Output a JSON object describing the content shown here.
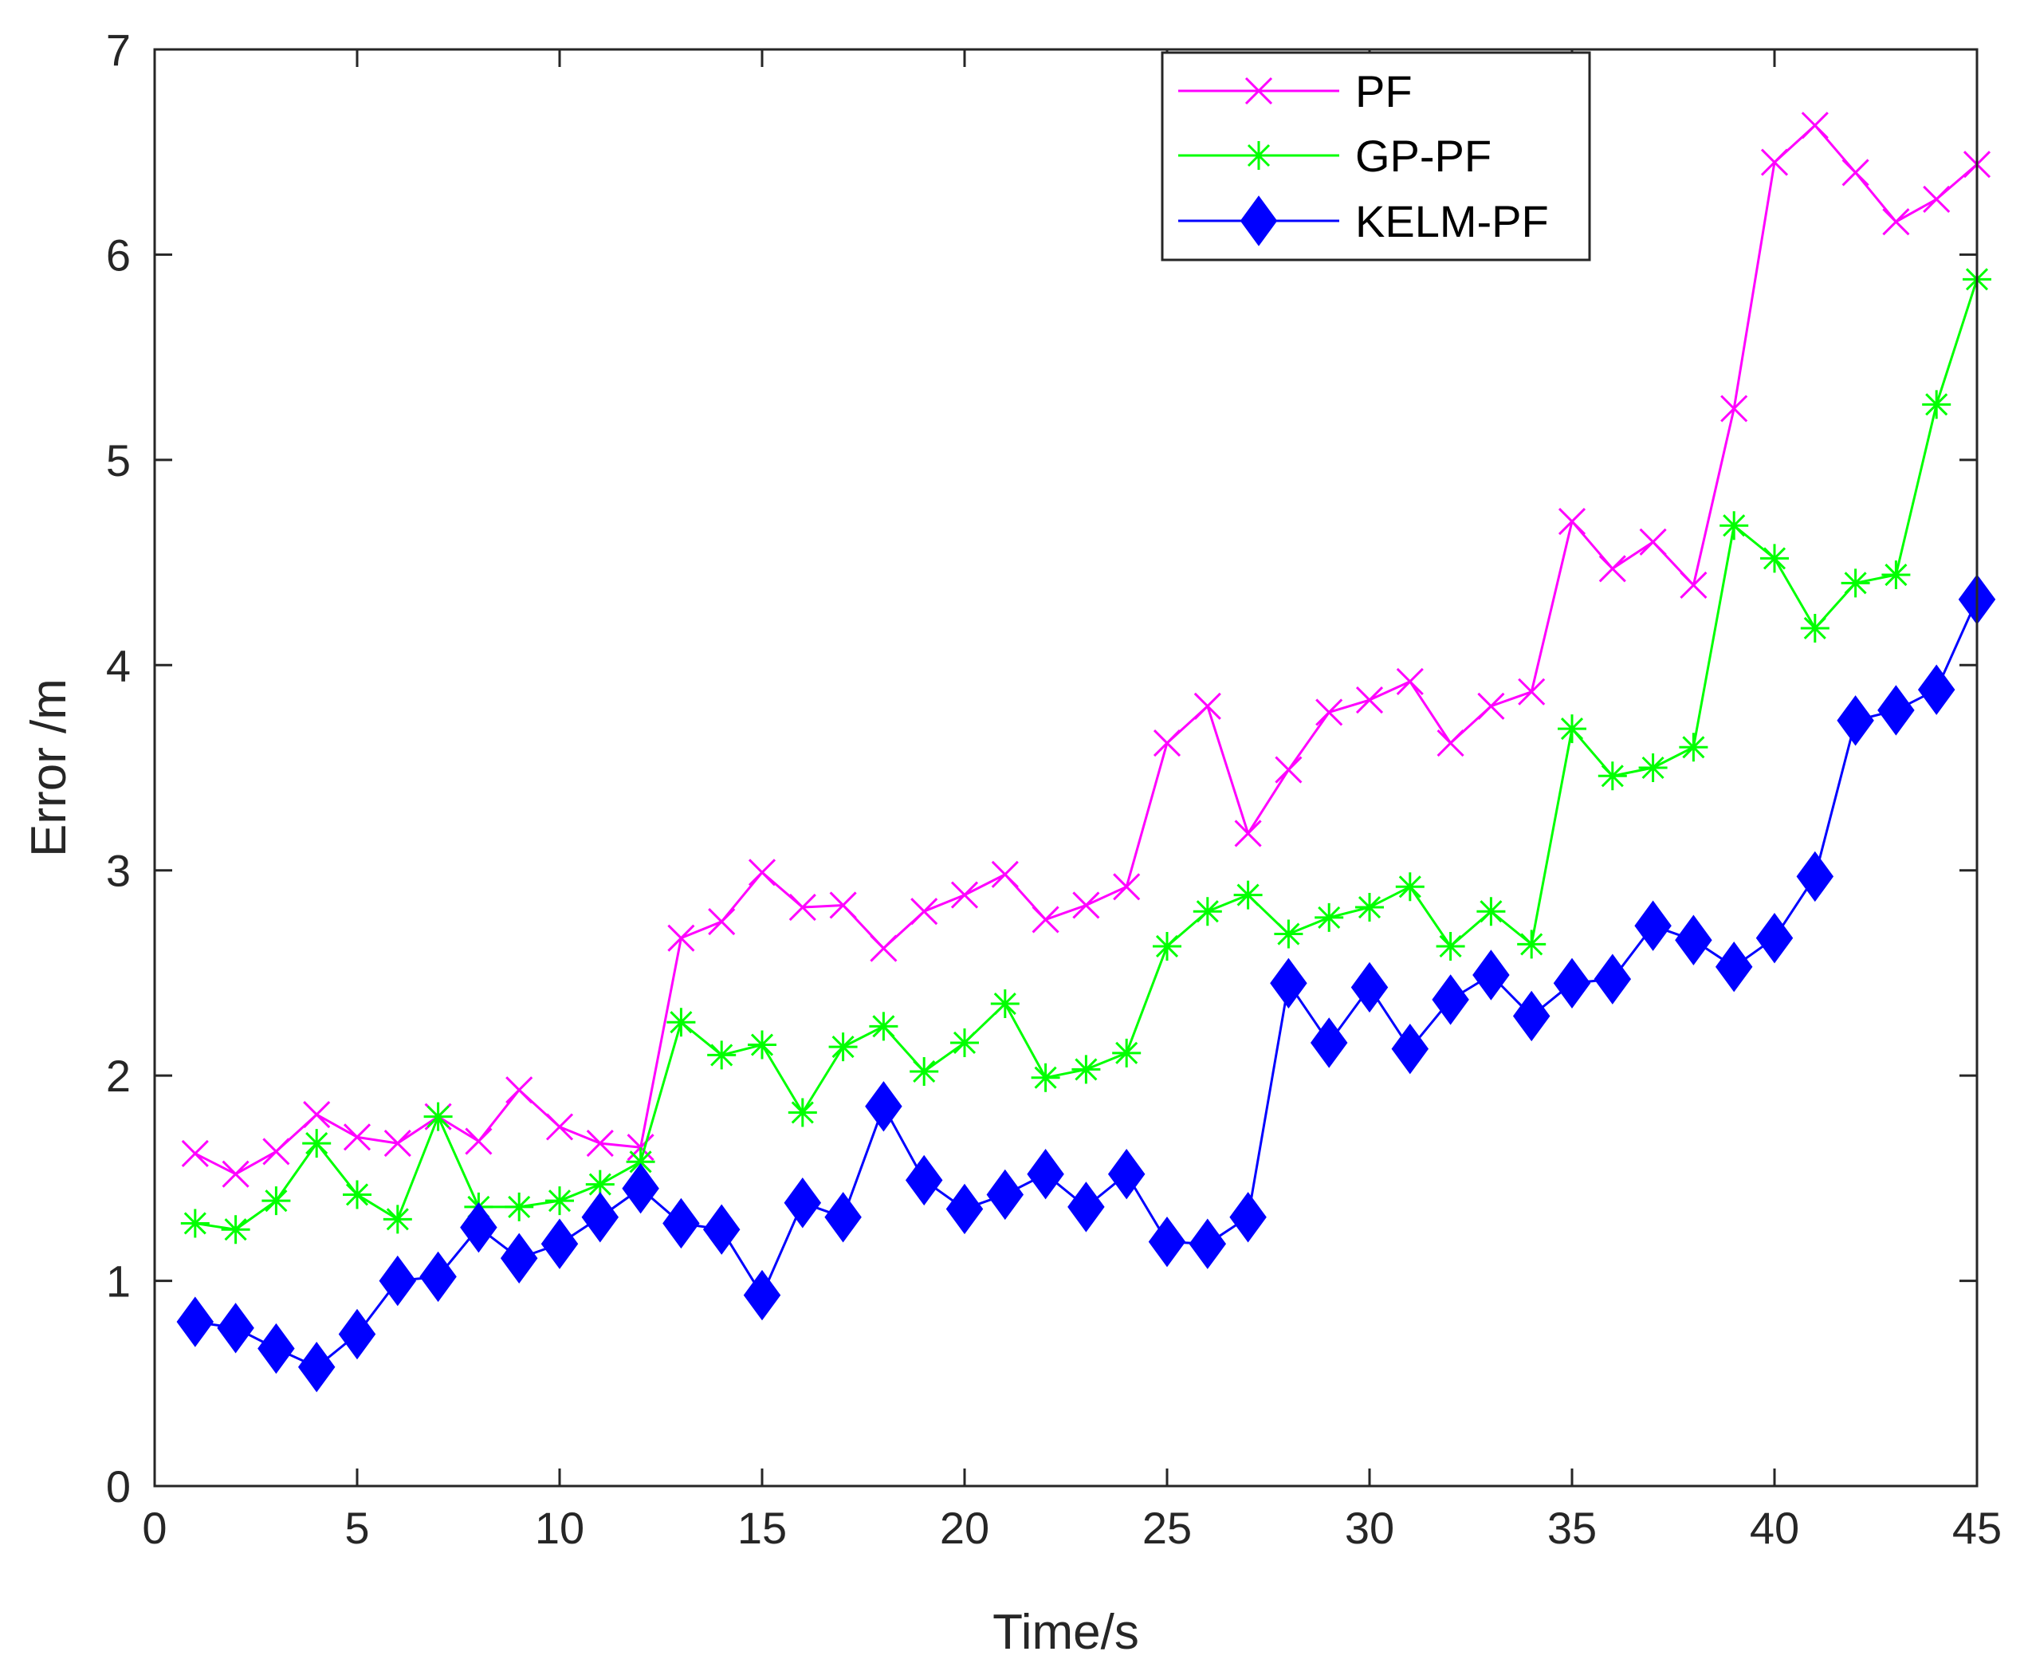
{
  "chart_data": {
    "type": "line",
    "xlabel": "Time/s",
    "ylabel": "Error /m",
    "xlim": [
      0,
      45
    ],
    "ylim": [
      0,
      7
    ],
    "xticks": [
      "0",
      "5",
      "10",
      "15",
      "20",
      "25",
      "30",
      "35",
      "40",
      "45"
    ],
    "yticks": [
      "0",
      "1",
      "2",
      "3",
      "4",
      "5",
      "6",
      "7"
    ],
    "grid": false,
    "legend_position": "top-right",
    "x": [
      1,
      2,
      3,
      4,
      5,
      6,
      7,
      8,
      9,
      10,
      11,
      12,
      13,
      14,
      15,
      16,
      17,
      18,
      19,
      20,
      21,
      22,
      23,
      24,
      25,
      26,
      27,
      28,
      29,
      30,
      31,
      32,
      33,
      34,
      35,
      36,
      37,
      38,
      39,
      40,
      41,
      42,
      43,
      44,
      45
    ],
    "series": [
      {
        "name": "PF",
        "color": "#FF00FF",
        "marker": "x",
        "values": [
          1.62,
          1.52,
          1.63,
          1.81,
          1.7,
          1.67,
          1.8,
          1.68,
          1.93,
          1.75,
          1.67,
          1.65,
          2.67,
          2.75,
          2.99,
          2.82,
          2.83,
          2.62,
          2.8,
          2.88,
          2.98,
          2.76,
          2.83,
          2.92,
          3.62,
          3.8,
          3.18,
          3.49,
          3.77,
          3.83,
          3.92,
          3.62,
          3.8,
          3.87,
          4.7,
          4.47,
          4.6,
          4.39,
          5.25,
          6.45,
          6.63,
          6.4,
          6.16,
          6.27,
          6.44
        ]
      },
      {
        "name": "GP-PF",
        "color": "#00FF00",
        "marker": "asterisk",
        "values": [
          1.28,
          1.25,
          1.39,
          1.67,
          1.42,
          1.3,
          1.8,
          1.36,
          1.36,
          1.39,
          1.47,
          1.58,
          2.26,
          2.1,
          2.15,
          1.82,
          2.14,
          2.24,
          2.02,
          2.16,
          2.35,
          1.99,
          2.03,
          2.11,
          2.63,
          2.8,
          2.88,
          2.69,
          2.77,
          2.82,
          2.92,
          2.63,
          2.8,
          2.64,
          3.69,
          3.46,
          3.5,
          3.6,
          4.68,
          4.52,
          4.18,
          4.4,
          4.44,
          5.27,
          5.88
        ]
      },
      {
        "name": "KELM-PF",
        "color": "#0000FF",
        "marker": "diamond",
        "values": [
          0.8,
          0.77,
          0.67,
          0.58,
          0.74,
          1.0,
          1.02,
          1.26,
          1.11,
          1.18,
          1.31,
          1.45,
          1.28,
          1.25,
          0.93,
          1.38,
          1.31,
          1.85,
          1.49,
          1.35,
          1.42,
          1.52,
          1.36,
          1.52,
          1.19,
          1.18,
          1.31,
          2.45,
          2.16,
          2.43,
          2.13,
          2.37,
          2.49,
          2.29,
          2.45,
          2.47,
          2.73,
          2.66,
          2.53,
          2.67,
          2.97,
          3.73,
          3.78,
          3.88,
          4.32
        ]
      }
    ]
  }
}
